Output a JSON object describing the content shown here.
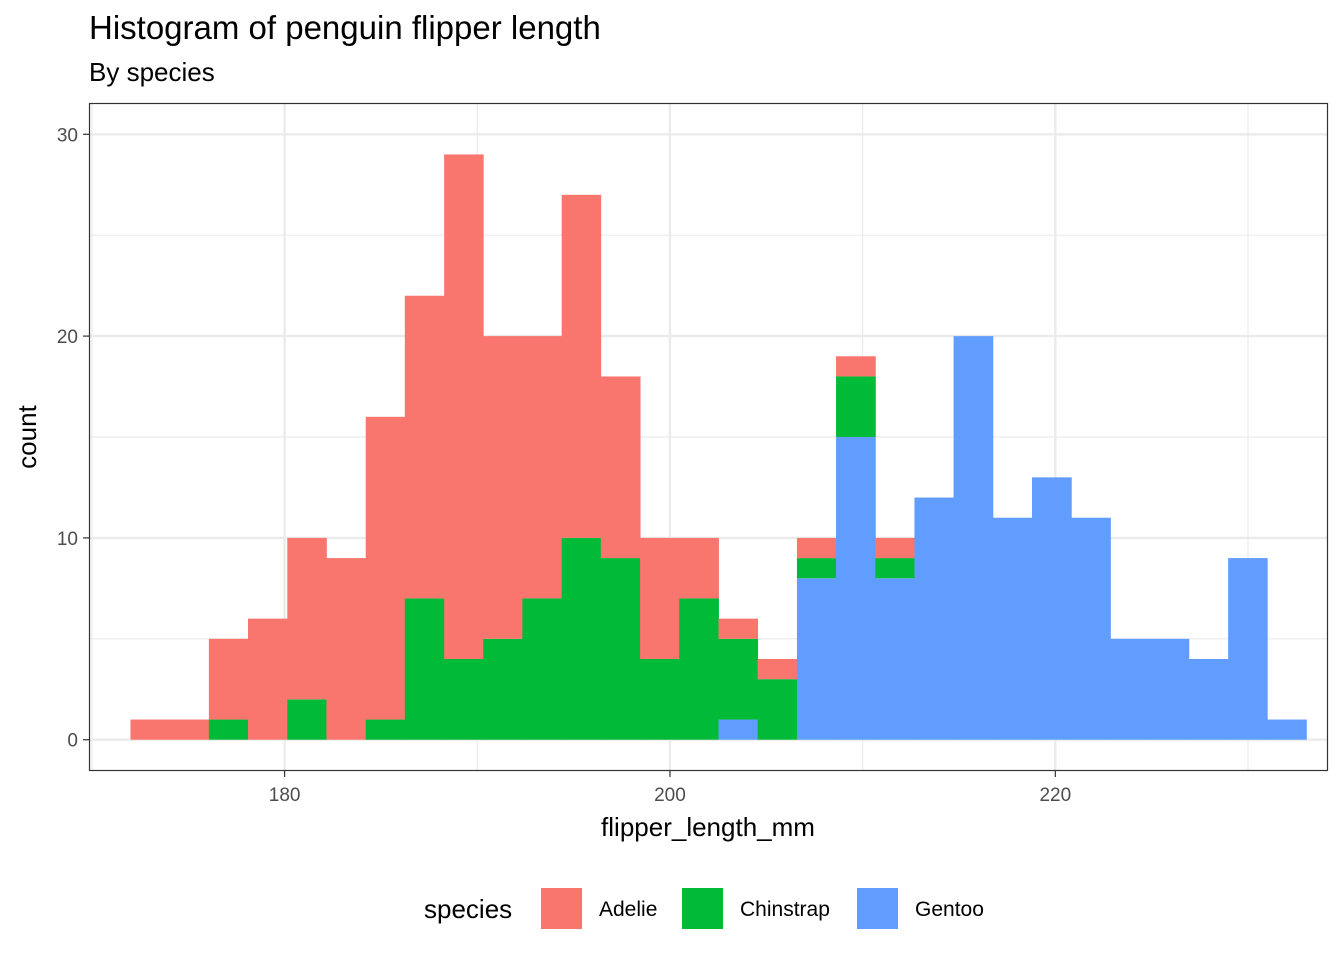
{
  "chart_data": {
    "type": "histogram",
    "title": "Histogram of penguin flipper length",
    "subtitle": "By species",
    "xlabel": "flipper_length_mm",
    "ylabel": "count",
    "xlim": [
      169.9,
      234.1
    ],
    "ylim": [
      -1.5,
      31.5
    ],
    "x_ticks": [
      180,
      200,
      220
    ],
    "y_ticks": [
      0,
      10,
      20,
      30
    ],
    "x_tick_labels": [
      "180",
      "200",
      "220"
    ],
    "y_tick_labels": [
      "0",
      "10",
      "20",
      "30"
    ],
    "grid": true,
    "stacked": true,
    "legend_position": "bottom",
    "legend_title": "species",
    "bin_edges": [
      172.0,
      174.03,
      176.07,
      178.1,
      180.14,
      182.17,
      184.21,
      186.24,
      188.28,
      190.31,
      192.34,
      194.38,
      196.41,
      198.45,
      200.48,
      202.52,
      204.55,
      206.59,
      208.62,
      210.66,
      212.69,
      214.72,
      216.76,
      218.79,
      220.83,
      222.86,
      224.9,
      226.93,
      228.97,
      231.0,
      233.03
    ],
    "series": [
      {
        "name": "Adelie",
        "color": "#F8766D",
        "values": [
          1,
          1,
          4,
          6,
          8,
          9,
          15,
          15,
          25,
          15,
          13,
          17,
          9,
          6,
          3,
          1,
          1,
          1,
          1,
          1,
          0,
          0,
          0,
          0,
          0,
          0,
          0,
          0,
          0,
          0
        ]
      },
      {
        "name": "Chinstrap",
        "color": "#00BA38",
        "values": [
          0,
          0,
          1,
          0,
          2,
          0,
          1,
          7,
          4,
          5,
          7,
          10,
          9,
          4,
          7,
          4,
          3,
          1,
          3,
          1,
          0,
          0,
          0,
          0,
          0,
          0,
          0,
          0,
          0,
          0
        ]
      },
      {
        "name": "Gentoo",
        "color": "#619CFF",
        "values": [
          0,
          0,
          0,
          0,
          0,
          0,
          0,
          0,
          0,
          0,
          0,
          0,
          0,
          0,
          0,
          1,
          0,
          8,
          15,
          8,
          12,
          20,
          11,
          13,
          11,
          5,
          5,
          4,
          9,
          1
        ]
      }
    ]
  }
}
